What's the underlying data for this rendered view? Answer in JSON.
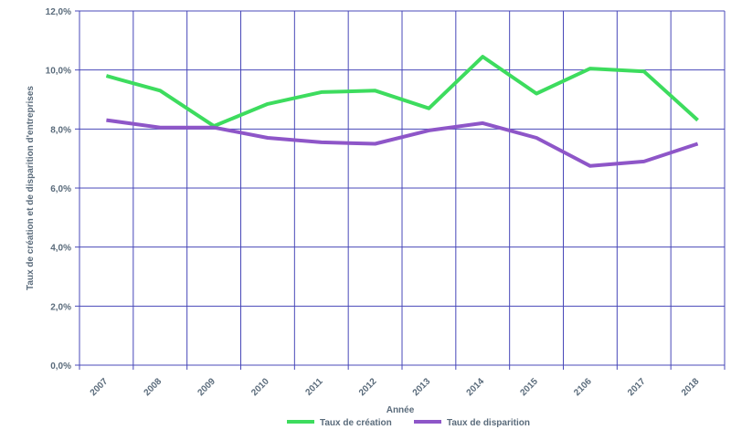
{
  "chart_data": {
    "type": "line",
    "categories": [
      "2007",
      "2008",
      "2009",
      "2010",
      "2011",
      "2012",
      "2013",
      "2014",
      "2015",
      "2106",
      "2017",
      "2018"
    ],
    "series": [
      {
        "name": "Taux de création",
        "color": "#3ddc5e",
        "values": [
          9.8,
          9.3,
          8.1,
          8.85,
          9.25,
          9.3,
          8.7,
          10.45,
          9.2,
          10.05,
          9.95,
          8.3
        ]
      },
      {
        "name": "Taux de disparition",
        "color": "#8e56c8",
        "values": [
          8.3,
          8.05,
          8.05,
          7.7,
          7.55,
          7.5,
          7.95,
          8.2,
          7.7,
          6.75,
          6.9,
          7.5
        ]
      }
    ],
    "xlabel": "Année",
    "ylabel": "Taux de création et de disparition d'entreprises",
    "ylim": [
      0,
      12
    ],
    "yticks": [
      "0,0%",
      "2,0%",
      "4,0%",
      "6,0%",
      "8,0%",
      "10,0%",
      "12,0%"
    ],
    "grid": true,
    "grid_color": "#4848b8",
    "legend_position": "bottom"
  }
}
